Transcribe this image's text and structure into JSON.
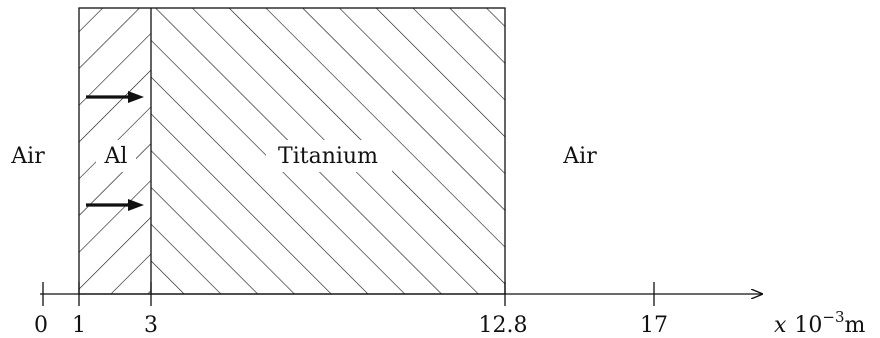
{
  "regions": [
    {
      "label": "Air",
      "x_from": 0,
      "x_to": 1
    },
    {
      "label": "Al",
      "x_from": 1,
      "x_to": 3
    },
    {
      "label": "Titanium",
      "x_from": 3,
      "x_to": 12.8
    },
    {
      "label": "Air",
      "x_from": 12.8,
      "x_to": 17
    }
  ],
  "axis": {
    "variable": "x",
    "unit_prefix": "10",
    "unit_exponent": "−3",
    "unit": "m",
    "ticks": [
      "0",
      "1",
      "3",
      "12.8",
      "17"
    ]
  },
  "arrows": {
    "count": 2,
    "direction": "right",
    "position": "Al–Titanium interface"
  },
  "hatching": {
    "Al": "forward diagonal",
    "Titanium": "backward diagonal"
  }
}
